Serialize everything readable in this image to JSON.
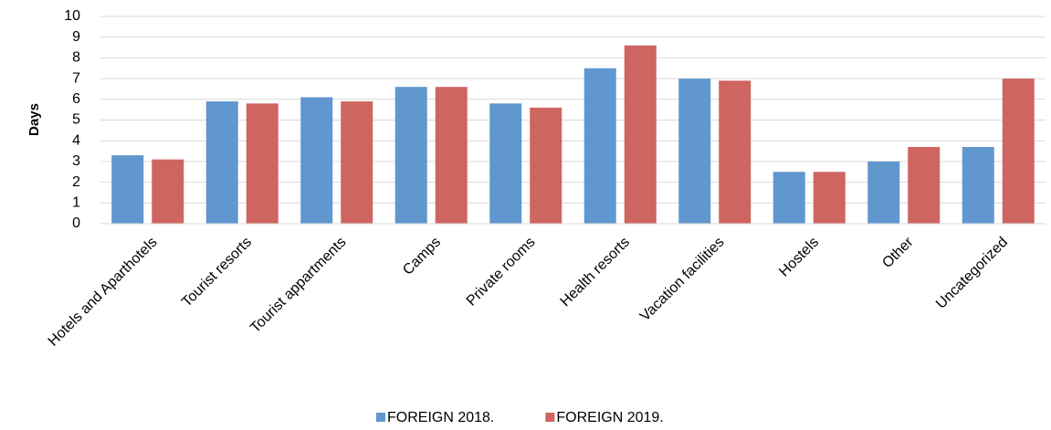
{
  "chart_data": {
    "type": "bar",
    "y_label": "Days",
    "categories": [
      "Hotels and Aparthotels",
      "Tourist resorts",
      "Tourist appartments",
      "Camps",
      "Private rooms",
      "Health resorts",
      "Vacation facilities",
      "Hostels",
      "Other",
      "Uncategorized"
    ],
    "series": [
      {
        "name": "FOREIGN 2018.",
        "color": "#6097cf",
        "values": [
          3.3,
          5.9,
          6.1,
          6.6,
          5.8,
          7.5,
          7.0,
          2.5,
          3.0,
          3.7
        ]
      },
      {
        "name": "FOREIGN 2019.",
        "color": "#cf6560",
        "values": [
          3.1,
          5.8,
          5.9,
          6.6,
          5.6,
          8.6,
          6.9,
          2.5,
          3.7,
          7.0
        ]
      }
    ],
    "ylim": [
      0,
      10
    ],
    "yticks": [
      0,
      1,
      2,
      3,
      4,
      5,
      6,
      7,
      8,
      9,
      10
    ],
    "grid": true
  }
}
